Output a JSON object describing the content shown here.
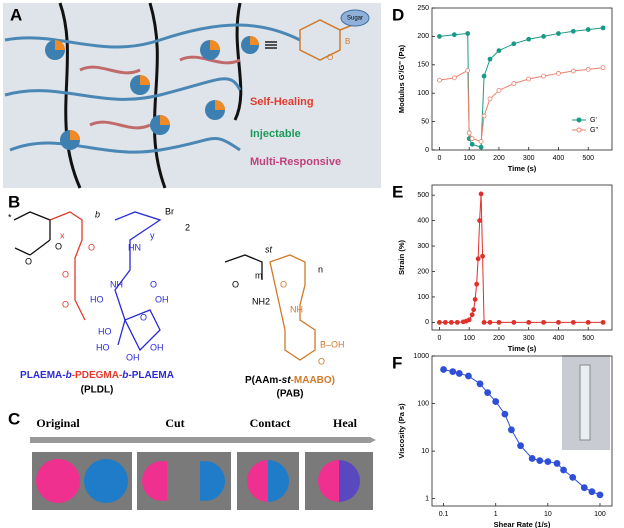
{
  "panels": {
    "A": {
      "label": "A",
      "properties": [
        "Self-Healing",
        "Injectable",
        "Multi-Responsive"
      ],
      "icon_labels": [
        "Sugar",
        "B",
        "O"
      ]
    },
    "B": {
      "label": "B",
      "polymer1": {
        "atoms": [
          "*",
          "x",
          "b",
          "y",
          "Br",
          "2",
          "O",
          "O",
          "O",
          "O",
          "O",
          "HN",
          "NH",
          "O",
          "OH",
          "HO",
          "O",
          "HO",
          "HO",
          "OH",
          "OH"
        ],
        "name_parts": [
          "PLAEMA-",
          "b",
          "-PDEGMA-",
          "b",
          "-PLAEMA"
        ],
        "abbr": "(PLDL)"
      },
      "polymer2": {
        "atoms": [
          "st",
          "m",
          "n",
          "O",
          "NH2",
          "O",
          "NH",
          "B–OH",
          "O"
        ],
        "name_parts": [
          "P(AAm-",
          "st",
          "-MAABO)"
        ],
        "abbr": "(PAB)"
      }
    },
    "C": {
      "label": "C",
      "steps": [
        "Original",
        "Cut",
        "Contact",
        "Heal"
      ]
    }
  },
  "chart_data": [
    {
      "type": "line",
      "panel": "D",
      "xlabel": "Time (s)",
      "ylabel": "Modulus G'/G'' (Pa)",
      "x": [
        0,
        50,
        95,
        100,
        110,
        140,
        150,
        170,
        200,
        250,
        300,
        350,
        400,
        450,
        500,
        550
      ],
      "series": [
        {
          "name": "G'",
          "color": "#1a9a86",
          "marker": "filled",
          "values": [
            200,
            203,
            205,
            20,
            10,
            5,
            130,
            160,
            175,
            187,
            195,
            200,
            205,
            209,
            212,
            215
          ]
        },
        {
          "name": "G''",
          "color": "#e8806c",
          "marker": "open",
          "values": [
            123,
            127,
            140,
            30,
            20,
            15,
            60,
            90,
            105,
            117,
            125,
            130,
            135,
            139,
            142,
            145
          ]
        }
      ],
      "xlim": [
        -25,
        580
      ],
      "ylim": [
        0,
        250
      ],
      "xticks": [
        0,
        100,
        200,
        300,
        400,
        500
      ],
      "yticks": [
        0,
        50,
        100,
        150,
        200,
        250
      ],
      "legend": "lower right"
    },
    {
      "type": "line",
      "panel": "E",
      "xlabel": "Time (s)",
      "ylabel": "Strain (%)",
      "x": [
        0,
        20,
        40,
        60,
        80,
        90,
        100,
        110,
        115,
        120,
        125,
        130,
        135,
        140,
        145,
        150,
        170,
        200,
        250,
        300,
        350,
        400,
        450,
        500,
        550
      ],
      "series": [
        {
          "name": "Strain",
          "color": "#e0302a",
          "marker": "filled",
          "values": [
            0,
            0,
            0,
            0,
            2,
            5,
            10,
            30,
            50,
            90,
            150,
            250,
            400,
            505,
            260,
            0,
            0,
            0,
            0,
            0,
            0,
            0,
            0,
            0,
            0
          ]
        }
      ],
      "xlim": [
        -25,
        580
      ],
      "ylim": [
        -30,
        540
      ],
      "xticks": [
        0,
        100,
        200,
        300,
        400,
        500
      ],
      "yticks": [
        0,
        100,
        200,
        300,
        400,
        500
      ]
    },
    {
      "type": "line",
      "panel": "F",
      "xlabel": "Shear Rate (1/s)",
      "ylabel": "Viscosity (Pa s)",
      "xscale": "log",
      "yscale": "log",
      "x": [
        0.1,
        0.15,
        0.2,
        0.3,
        0.5,
        0.7,
        1,
        1.5,
        2,
        3,
        5,
        7,
        10,
        15,
        20,
        30,
        50,
        70,
        100
      ],
      "series": [
        {
          "name": "Viscosity",
          "color": "#2f4fd8",
          "marker": "filled",
          "values": [
            520,
            470,
            430,
            380,
            260,
            170,
            110,
            60,
            28,
            13,
            7,
            6.3,
            6,
            5.5,
            4,
            2.8,
            1.7,
            1.4,
            1.2
          ]
        }
      ],
      "xlim": [
        0.06,
        170
      ],
      "ylim": [
        0.7,
        1000
      ],
      "xticks": [
        0.1,
        1,
        10,
        100
      ],
      "yticks": [
        1,
        10,
        100,
        1000
      ]
    }
  ]
}
